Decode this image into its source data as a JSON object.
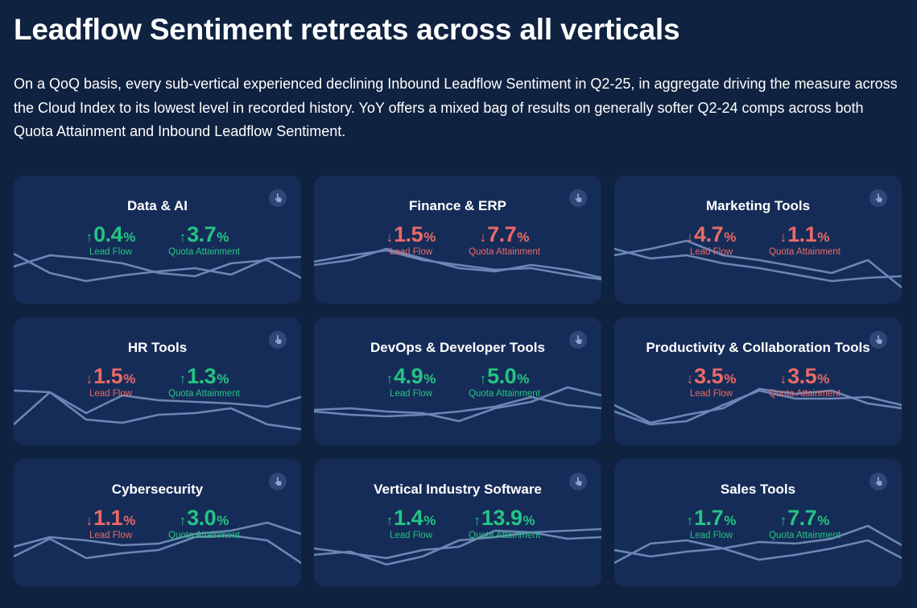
{
  "title": "Leadflow Sentiment retreats across all verticals",
  "subtitle": "On a QoQ basis, every sub-vertical experienced declining Inbound Leadflow Sentiment in Q2-25, in aggregate driving the measure across the Cloud Index to its lowest level in recorded history. YoY offers a mixed bag of results on generally softer Q2-24 comps across both Quota Attainment and Inbound Leadflow Sentiment.",
  "colors": {
    "background": "#0f2240",
    "card": "#162c58",
    "positive": "#23c582",
    "negative": "#ea6a68",
    "sparkline": "#6d86b3"
  },
  "metric_labels": {
    "lead_flow": "Lead Flow",
    "quota": "Quota Attainment",
    "percent": "%"
  },
  "cards": [
    {
      "title": "Data & AI",
      "lead_flow": {
        "value": "0.4",
        "direction": "up"
      },
      "quota": {
        "value": "3.7",
        "direction": "up"
      }
    },
    {
      "title": "Finance & ERP",
      "lead_flow": {
        "value": "1.5",
        "direction": "down"
      },
      "quota": {
        "value": "7.7",
        "direction": "down"
      }
    },
    {
      "title": "Marketing Tools",
      "lead_flow": {
        "value": "4.7",
        "direction": "down"
      },
      "quota": {
        "value": "1.1",
        "direction": "down"
      }
    },
    {
      "title": "HR Tools",
      "lead_flow": {
        "value": "1.5",
        "direction": "down"
      },
      "quota": {
        "value": "1.3",
        "direction": "up"
      }
    },
    {
      "title": "DevOps & Developer Tools",
      "lead_flow": {
        "value": "4.9",
        "direction": "up"
      },
      "quota": {
        "value": "5.0",
        "direction": "up"
      }
    },
    {
      "title": "Productivity & Collaboration Tools",
      "lead_flow": {
        "value": "3.5",
        "direction": "down"
      },
      "quota": {
        "value": "3.5",
        "direction": "down"
      }
    },
    {
      "title": "Cybersecurity",
      "lead_flow": {
        "value": "1.1",
        "direction": "down"
      },
      "quota": {
        "value": "3.0",
        "direction": "up"
      }
    },
    {
      "title": "Vertical Industry Software",
      "lead_flow": {
        "value": "1.4",
        "direction": "up"
      },
      "quota": {
        "value": "13.9",
        "direction": "up"
      }
    },
    {
      "title": "Sales Tools",
      "lead_flow": {
        "value": "1.7",
        "direction": "up"
      },
      "quota": {
        "value": "7.7",
        "direction": "up"
      }
    }
  ]
}
